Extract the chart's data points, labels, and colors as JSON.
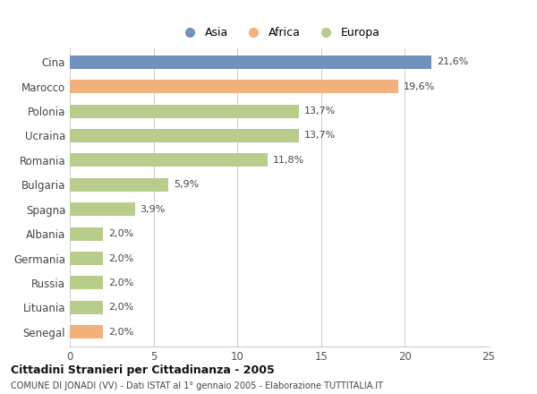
{
  "categories": [
    "Cina",
    "Marocco",
    "Polonia",
    "Ucraina",
    "Romania",
    "Bulgaria",
    "Spagna",
    "Albania",
    "Germania",
    "Russia",
    "Lituania",
    "Senegal"
  ],
  "values": [
    21.6,
    19.6,
    13.7,
    13.7,
    11.8,
    5.9,
    3.9,
    2.0,
    2.0,
    2.0,
    2.0,
    2.0
  ],
  "labels": [
    "21,6%",
    "19,6%",
    "13,7%",
    "13,7%",
    "11,8%",
    "5,9%",
    "3,9%",
    "2,0%",
    "2,0%",
    "2,0%",
    "2,0%",
    "2,0%"
  ],
  "colors": [
    "#7090be",
    "#f2b07a",
    "#b8cc8c",
    "#b8cc8c",
    "#b8cc8c",
    "#b8cc8c",
    "#b8cc8c",
    "#b8cc8c",
    "#b8cc8c",
    "#b8cc8c",
    "#b8cc8c",
    "#f2b07a"
  ],
  "legend_labels": [
    "Asia",
    "Africa",
    "Europa"
  ],
  "legend_colors": [
    "#7090be",
    "#f2b07a",
    "#b8cc8c"
  ],
  "xlim": [
    0,
    25
  ],
  "xticks": [
    0,
    5,
    10,
    15,
    20,
    25
  ],
  "title": "Cittadini Stranieri per Cittadinanza - 2005",
  "subtitle": "COMUNE DI JONADI (VV) - Dati ISTAT al 1° gennaio 2005 - Elaborazione TUTTITALIA.IT",
  "bg_color": "#ffffff",
  "grid_color": "#cccccc",
  "bar_height": 0.55,
  "label_fontsize": 8,
  "tick_fontsize": 8.5
}
